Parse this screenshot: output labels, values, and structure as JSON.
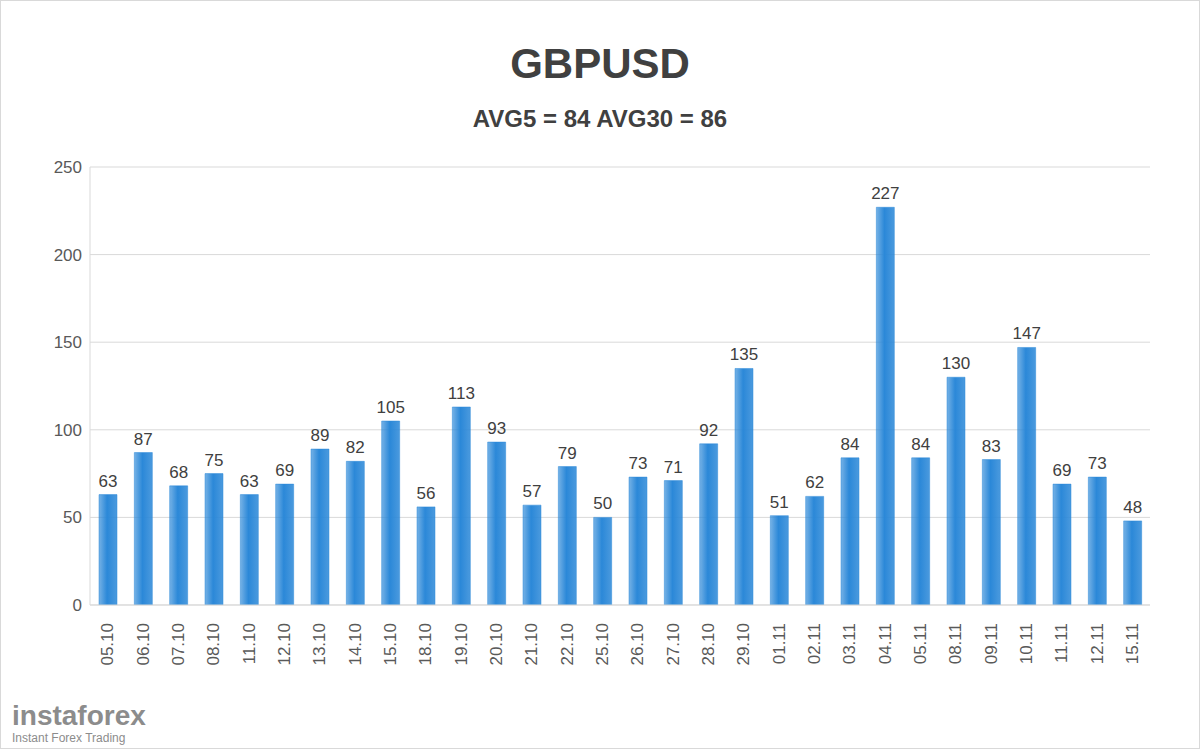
{
  "chart_data": {
    "type": "bar",
    "title": "GBPUSD",
    "subtitle": "AVG5 = 84 AVG30 = 86",
    "categories": [
      "05.10",
      "06.10",
      "07.10",
      "08.10",
      "11.10",
      "12.10",
      "13.10",
      "14.10",
      "15.10",
      "18.10",
      "19.10",
      "20.10",
      "21.10",
      "22.10",
      "25.10",
      "26.10",
      "27.10",
      "28.10",
      "29.10",
      "01.11",
      "02.11",
      "03.11",
      "04.11",
      "05.11",
      "08.11",
      "09.11",
      "10.11",
      "11.11",
      "12.11",
      "15.11"
    ],
    "values": [
      63,
      87,
      68,
      75,
      63,
      69,
      89,
      82,
      105,
      56,
      113,
      93,
      57,
      79,
      50,
      73,
      71,
      92,
      135,
      51,
      62,
      84,
      227,
      84,
      130,
      83,
      147,
      69,
      73,
      48
    ],
    "color": "#2b88d8",
    "ylim": [
      0,
      250
    ],
    "yticks": [
      0,
      50,
      100,
      150,
      200,
      250
    ],
    "grid": true,
    "data_labels": true,
    "annotations": [
      "instaforex",
      "Instant Forex Trading"
    ]
  }
}
